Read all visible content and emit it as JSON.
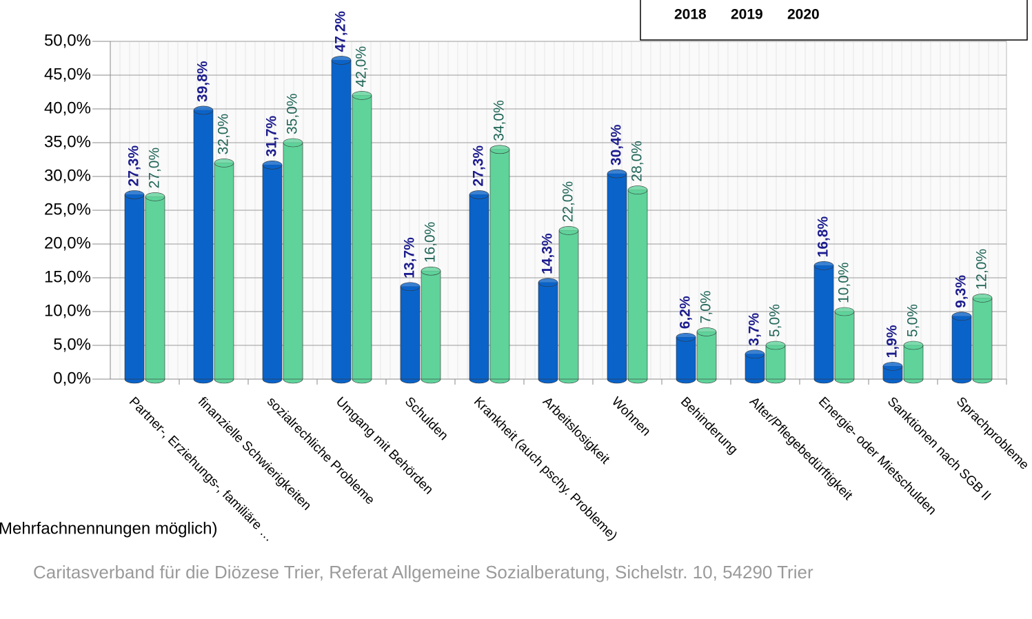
{
  "chart_data": {
    "type": "bar",
    "categories": [
      "Partner-, Erziehungs-, familiäre …",
      "finanzielle Schwierigkeiten",
      "sozialrechliche Probleme",
      "Umgang mit Behörden",
      "Schulden",
      "Krankheit (auch pschy. Probleme)",
      "Arbeitslosigkeit",
      "Wohnen",
      "Behinderung",
      "Alter/Pflegebedürftigkeit",
      "Energie- oder Mietschulden",
      "Sanktionen nach SGB II",
      "Sprachprobleme"
    ],
    "series": [
      {
        "name": "2018",
        "color": "#8fb7e8",
        "values": [
          null,
          null,
          null,
          null,
          null,
          null,
          null,
          null,
          null,
          null,
          null,
          null,
          null
        ]
      },
      {
        "name": "2019",
        "color": "#0a63c9",
        "label_color": "#1c1c8e",
        "values": [
          27.3,
          39.8,
          31.7,
          47.2,
          13.7,
          27.3,
          14.3,
          30.4,
          6.2,
          3.7,
          16.8,
          1.9,
          9.3
        ],
        "value_labels": [
          "27,3%",
          "39,8%",
          "31,7%",
          "47,2%",
          "13,7%",
          "27,3%",
          "14,3%",
          "30,4%",
          "6,2%",
          "3,7%",
          "16,8%",
          "1,9%",
          "9,3%"
        ]
      },
      {
        "name": "2020",
        "color": "#5fd39a",
        "label_color": "#1f6557",
        "values": [
          27.0,
          32.0,
          35.0,
          42.0,
          16.0,
          34.0,
          22.0,
          28.0,
          7.0,
          5.0,
          10.0,
          5.0,
          12.0
        ],
        "value_labels": [
          "27,0%",
          "32,0%",
          "35,0%",
          "42,0%",
          "16,0%",
          "34,0%",
          "22,0%",
          "28,0%",
          "7,0%",
          "5,0%",
          "10,0%",
          "5,0%",
          "12,0%"
        ]
      }
    ],
    "ylim": [
      0,
      50
    ],
    "yticks": [
      {
        "value": 0,
        "label": "0,0%"
      },
      {
        "value": 5,
        "label": "5,0%"
      },
      {
        "value": 10,
        "label": "10,0%"
      },
      {
        "value": 15,
        "label": "15,0%"
      },
      {
        "value": 20,
        "label": "20,0%"
      },
      {
        "value": 25,
        "label": "25,0%"
      },
      {
        "value": 30,
        "label": "30,0%"
      },
      {
        "value": 35,
        "label": "35,0%"
      },
      {
        "value": 40,
        "label": "40,0%"
      },
      {
        "value": 45,
        "label": "45,0%"
      },
      {
        "value": 50,
        "label": "50,0%"
      }
    ],
    "grid": true,
    "legend": "top-right",
    "note": "(Mehrfachnennungen möglich)",
    "source": "Caritasverband für die Diözese Trier, Referat Allgemeine Sozialberatung, Sichelstr. 10, 54290 Trier"
  }
}
